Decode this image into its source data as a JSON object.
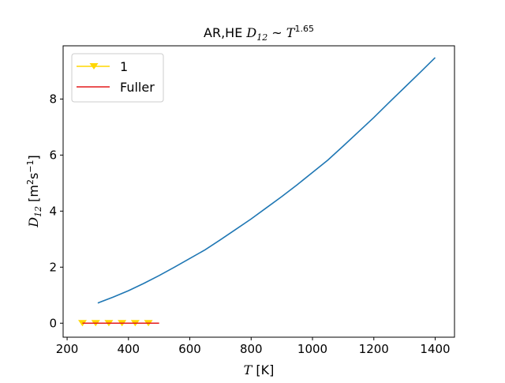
{
  "chart_data": {
    "type": "line",
    "title": {
      "prefix": "AR,HE ",
      "var": "D",
      "sub": "12",
      "rel": " ~ ",
      "base": "T",
      "exp": "1.65"
    },
    "xlabel": {
      "var": "T",
      "unit": " [K]"
    },
    "ylabel": {
      "var": "D",
      "sub": "12",
      "unit_open": " [m",
      "sup1": "2",
      "unit_mid": "s",
      "sup2": "−1",
      "unit_close": "]"
    },
    "xlim": [
      187,
      1463
    ],
    "ylim": [
      -0.5,
      9.9
    ],
    "xticks": [
      200,
      400,
      600,
      800,
      1000,
      1200,
      1400
    ],
    "yticks": [
      0,
      2,
      4,
      6,
      8
    ],
    "grid": false,
    "legend_position": "upper-left",
    "series": [
      {
        "name": "",
        "color": "#1f77b4",
        "marker": "none",
        "x": [
          300,
          350,
          400,
          450,
          500,
          550,
          600,
          650,
          700,
          750,
          800,
          850,
          900,
          950,
          1000,
          1050,
          1100,
          1150,
          1200,
          1250,
          1300,
          1350,
          1400
        ],
        "y": [
          0.72,
          0.93,
          1.16,
          1.42,
          1.7,
          2.0,
          2.31,
          2.62,
          2.98,
          3.35,
          3.72,
          4.12,
          4.52,
          4.94,
          5.38,
          5.82,
          6.32,
          6.83,
          7.34,
          7.88,
          8.41,
          8.94,
          9.48
        ]
      },
      {
        "name": "1",
        "color": "#ffd700",
        "marker": "triangle-down",
        "x": [
          250,
          293,
          336,
          379,
          422,
          465
        ],
        "y": [
          0.0,
          0.0,
          0.0,
          0.0,
          0.0,
          0.0
        ]
      },
      {
        "name": "Fuller",
        "color": "#e41a1c",
        "marker": "none",
        "x": [
          250,
          500
        ],
        "y": [
          0.0,
          0.0
        ]
      }
    ]
  }
}
